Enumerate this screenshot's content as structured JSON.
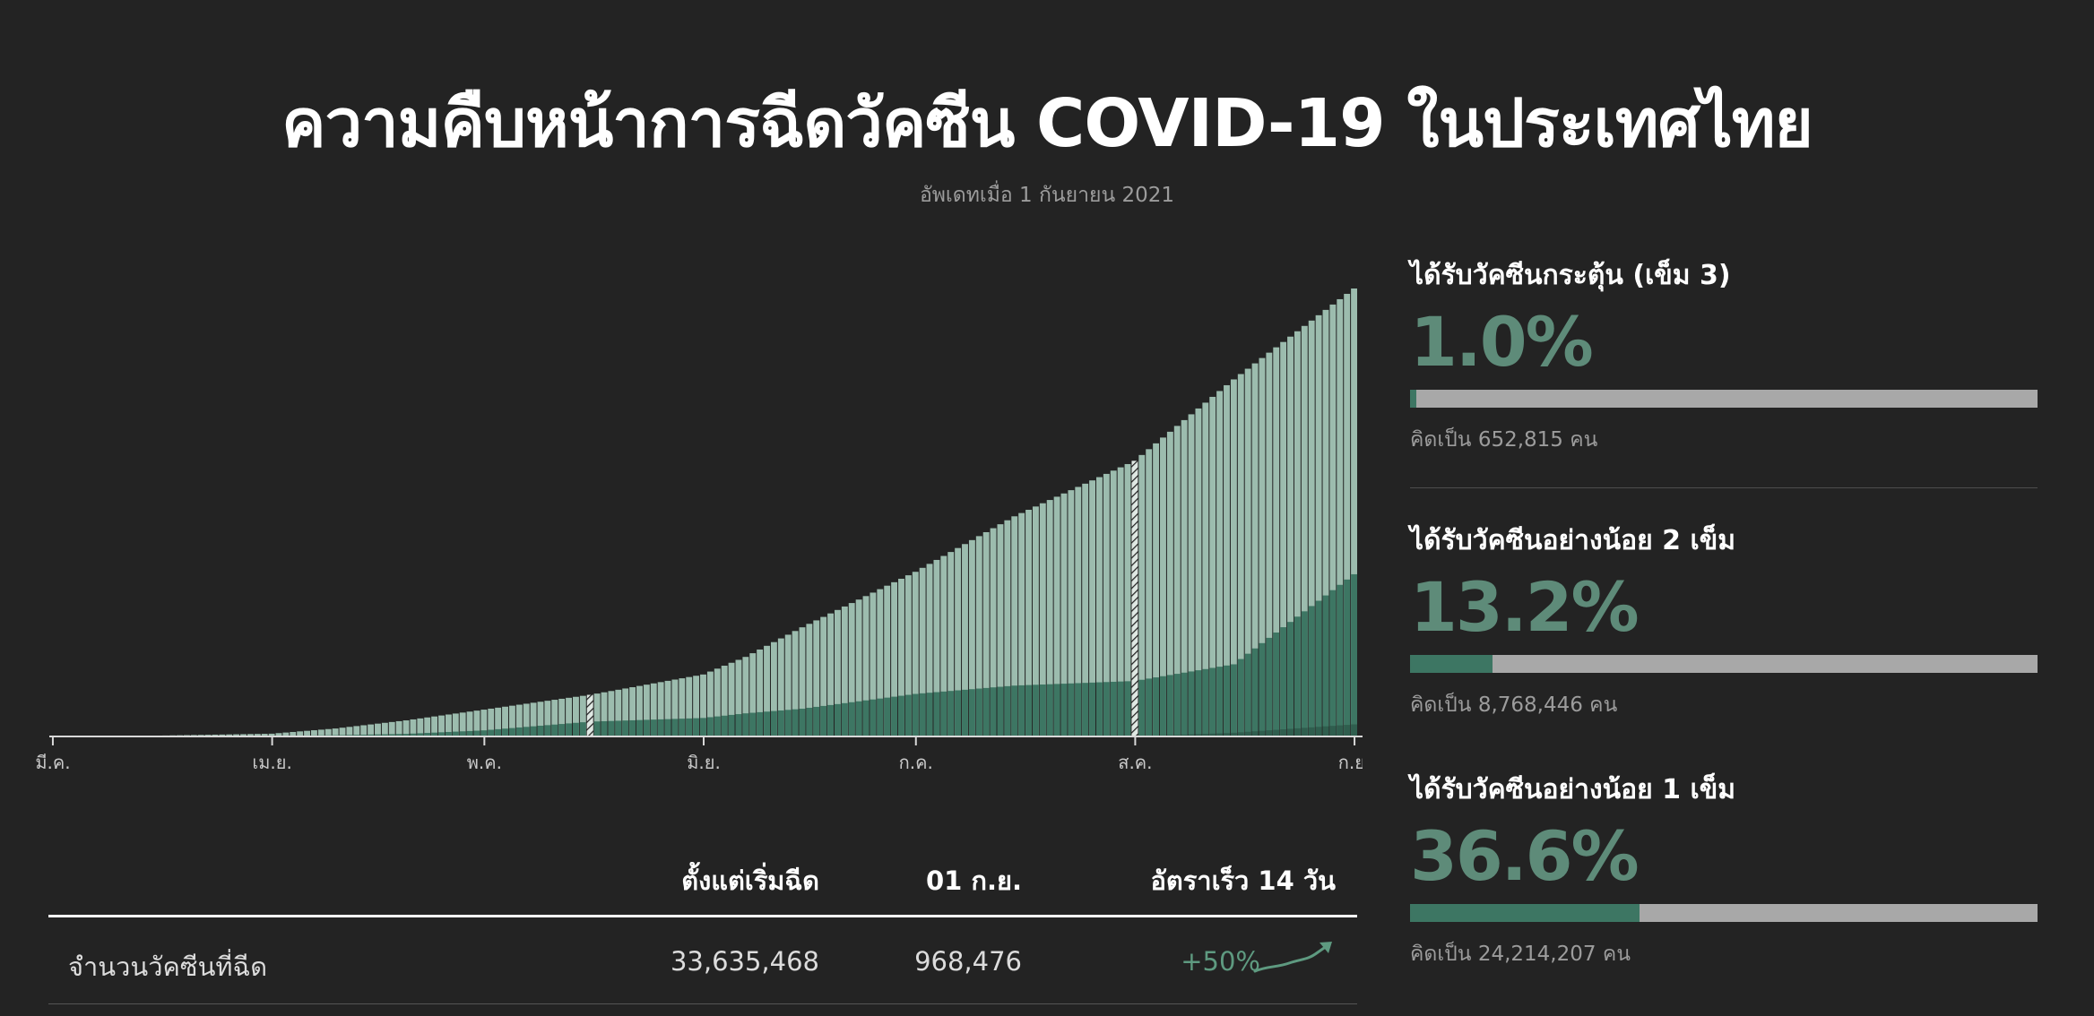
{
  "header": {
    "title": "ความคืบหน้าการฉีดวัคซีน COVID-19 ในประเทศไทย",
    "subtitle": "อัพเดทเมื่อ 1 กันยายน 2021"
  },
  "colors": {
    "background": "#232323",
    "dose1": "#9cbcae",
    "dose2": "#3d7663",
    "booster": "#2f5e4e",
    "accent_text": "#5e8b79",
    "track": "#a8a8a8"
  },
  "chart_data": {
    "type": "bar",
    "stacked": true,
    "x_start": "2021-03-01",
    "x_end": "2021-09-01",
    "tick_labels": [
      "มี.ค.",
      "เม.ย.",
      "พ.ค.",
      "มิ.ย.",
      "ก.ค.",
      "ส.ค.",
      "ก.ย."
    ],
    "tick_dates": [
      "2021-03-01",
      "2021-04-01",
      "2021-05-01",
      "2021-06-01",
      "2021-07-01",
      "2021-08-01",
      "2021-09-01"
    ],
    "ylim": [
      0,
      24214207
    ],
    "highlight_dates": [
      "2021-05-16",
      "2021-08-01"
    ],
    "cumulative_anchors": {
      "dates": [
        "2021-03-01",
        "2021-03-15",
        "2021-04-01",
        "2021-04-10",
        "2021-04-20",
        "2021-05-01",
        "2021-05-16",
        "2021-06-01",
        "2021-06-07",
        "2021-06-15",
        "2021-07-01",
        "2021-07-15",
        "2021-08-01",
        "2021-08-15",
        "2021-09-01"
      ],
      "dose1": [
        0,
        40000,
        150000,
        430000,
        870000,
        1450000,
        2250000,
        3350000,
        4300000,
        5900000,
        8900000,
        11900000,
        14900000,
        19300000,
        24214207
      ],
      "dose2": [
        0,
        0,
        30000,
        70000,
        140000,
        330000,
        800000,
        1000000,
        1250000,
        1500000,
        2300000,
        2750000,
        3000000,
        3900000,
        8768446
      ],
      "booster": [
        0,
        0,
        0,
        0,
        0,
        0,
        0,
        0,
        0,
        0,
        0,
        0,
        0,
        200000,
        652815
      ]
    },
    "series": [
      {
        "name": "ได้รับวัคซีนอย่างน้อย 1 เข็ม",
        "color": "#9cbcae"
      },
      {
        "name": "ได้รับวัคซีนอย่างน้อย 2 เข็ม",
        "color": "#3d7663"
      },
      {
        "name": "ได้รับวัคซีนกระตุ้น (เข็ม 3)",
        "color": "#2f5e4e"
      }
    ]
  },
  "table": {
    "headers": {
      "since_start": "ตั้งแต่เริ่มฉีด",
      "date": "01 ก.ย.",
      "rate": "อัตราเร็ว 14 วัน"
    },
    "rows": [
      {
        "label": "จำนวนวัคซีนที่ฉีด",
        "since_start": "33,635,468",
        "date": "968,476",
        "rate": "+50%"
      }
    ]
  },
  "panels": [
    {
      "title": "ได้รับวัคซีนกระตุ้น (เข็ม 3)",
      "percent_label": "1.0%",
      "percent": 1.0,
      "note": "คิดเป็น 652,815 คน"
    },
    {
      "title": "ได้รับวัคซีนอย่างน้อย 2 เข็ม",
      "percent_label": "13.2%",
      "percent": 13.2,
      "note": "คิดเป็น 8,768,446 คน"
    },
    {
      "title": "ได้รับวัคซีนอย่างน้อย 1 เข็ม",
      "percent_label": "36.6%",
      "percent": 36.6,
      "note": "คิดเป็น 24,214,207 คน"
    }
  ]
}
